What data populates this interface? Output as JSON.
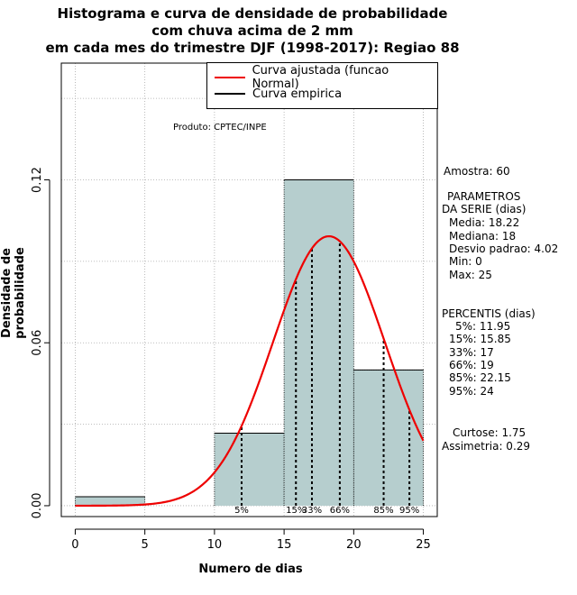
{
  "title_lines": [
    "Histograma e curva de densidade de probabilidade",
    "com chuva acima de 2 mm",
    "em cada mes do trimestre DJF (1998-2017): Regiao 88"
  ],
  "produto": "Produto: CPTEC/INPE",
  "legend": {
    "fitted": "Curva ajustada (funcao Normal)",
    "empirical": "Curva empirica"
  },
  "stats": {
    "amostra": "Amostra: 60",
    "params_header_1": "PARAMETROS",
    "params_header_2": "DA SERIE (dias)",
    "media": "Media: 18.22",
    "mediana": "Mediana: 18",
    "desvio": "Desvio padrao: 4.02",
    "min": "Min: 0",
    "max": "Max: 25",
    "percentis_header": "PERCENTIS (dias)",
    "p5": "5%: 11.95",
    "p15": "15%: 15.85",
    "p33": "33%: 17",
    "p66": "66%: 19",
    "p85": "85%: 22.15",
    "p95": "95%: 24",
    "curtose": "Curtose: 1.75",
    "assimetria": "Assimetria: 0.29"
  },
  "colors": {
    "bar_fill": "#b6cece",
    "fitted_curve": "#ee0000",
    "grid": "#aaaaaa"
  },
  "chart_data": {
    "type": "bar",
    "title": "Histograma e curva de densidade de probabilidade com chuva acima de 2 mm em cada mes do trimestre DJF (1998-2017): Regiao 88",
    "xlabel": "Numero de dias",
    "ylabel": "Densidade de probabilidade",
    "xlim": [
      -1,
      26
    ],
    "ylim": [
      -0.004,
      0.163
    ],
    "x_ticks": [
      0,
      5,
      10,
      15,
      20,
      25
    ],
    "y_ticks": [
      0.0,
      0.06,
      0.12
    ],
    "y_tick_labels": [
      "0.00",
      "0.06",
      "0.12"
    ],
    "bins": [
      {
        "x0": 0,
        "x1": 5,
        "density": 0.0033
      },
      {
        "x0": 5,
        "x1": 10,
        "density": 0.0
      },
      {
        "x0": 10,
        "x1": 15,
        "density": 0.0267
      },
      {
        "x0": 15,
        "x1": 20,
        "density": 0.12
      },
      {
        "x0": 20,
        "x1": 25,
        "density": 0.05
      }
    ],
    "normal_fit": {
      "mean": 18.22,
      "sd": 4.02,
      "x_range": [
        0,
        25
      ]
    },
    "percentiles": [
      {
        "label": "5%",
        "value": 11.95
      },
      {
        "label": "15%",
        "value": 15.85
      },
      {
        "label": "33%",
        "value": 17
      },
      {
        "label": "66%",
        "value": 19
      },
      {
        "label": "85%",
        "value": 22.15
      },
      {
        "label": "95%",
        "value": 24
      }
    ],
    "grid": true,
    "legend_position": "top-right"
  }
}
